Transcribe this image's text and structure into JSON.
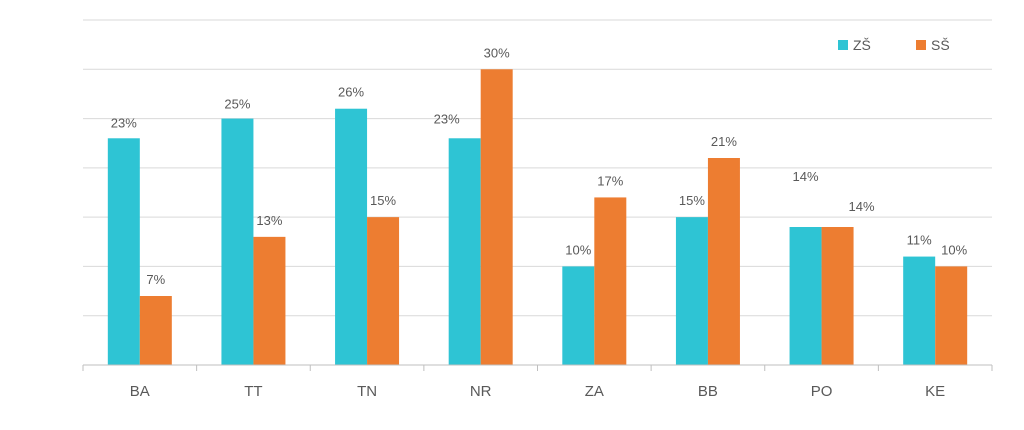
{
  "chart_data": {
    "type": "bar",
    "categories": [
      "BA",
      "TT",
      "TN",
      "NR",
      "ZA",
      "BB",
      "PO",
      "KE"
    ],
    "series": [
      {
        "name": "ZŠ",
        "color": "#2ec4d4",
        "values": [
          23,
          25,
          26,
          23,
          10,
          15,
          14,
          11
        ],
        "labels": [
          "23%",
          "25%",
          "26%",
          "23%",
          "10%",
          "15%",
          "14%",
          "11%"
        ]
      },
      {
        "name": "SŠ",
        "color": "#ed7d31",
        "values": [
          7,
          13,
          15,
          30,
          17,
          21,
          14,
          10
        ],
        "labels": [
          "7%",
          "13%",
          "15%",
          "30%",
          "17%",
          "21%",
          "14%",
          "10%"
        ]
      }
    ],
    "ylim": [
      0,
      35
    ],
    "grid": true,
    "legend": "top-right",
    "title": "",
    "xlabel": "",
    "ylabel": ""
  }
}
